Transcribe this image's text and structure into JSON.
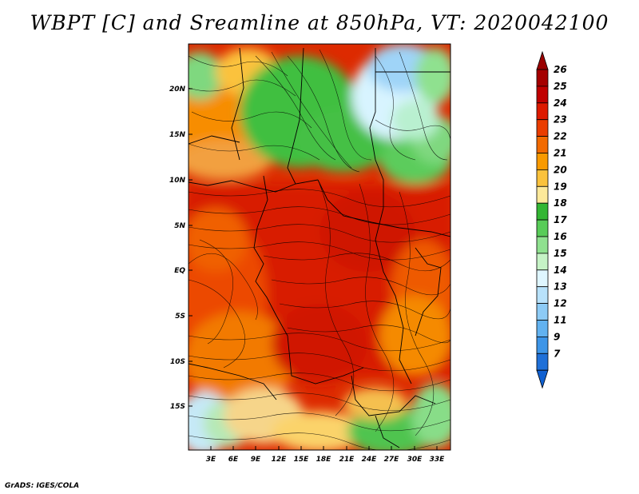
{
  "title": "WBPT [C] and Sreamline at 850hPa, VT: 2020042100",
  "credit": "GrADS: IGES/COLA",
  "map": {
    "lat_labels": [
      "20N",
      "15N",
      "10N",
      "5N",
      "EQ",
      "5S",
      "10S",
      "15S"
    ],
    "lon_labels": [
      "3E",
      "6E",
      "9E",
      "12E",
      "15E",
      "18E",
      "21E",
      "24E",
      "27E",
      "30E",
      "33E"
    ]
  },
  "colorbar": {
    "labels": [
      "26",
      "25",
      "24",
      "23",
      "22",
      "21",
      "20",
      "19",
      "18",
      "17",
      "16",
      "15",
      "14",
      "13",
      "12",
      "11",
      "9",
      "7"
    ],
    "colors": [
      "#a50000",
      "#c00000",
      "#dd1a00",
      "#ea3d00",
      "#f26a00",
      "#f99a00",
      "#fbc23c",
      "#fde99a",
      "#33b633",
      "#58cc58",
      "#8fe18f",
      "#c6f3c6",
      "#dff6ff",
      "#b8e2fb",
      "#8dcbf6",
      "#62b2f0",
      "#3d95e8",
      "#1f70d8"
    ],
    "top_color": "#9a0000",
    "bottom_color": "#1060d0"
  }
}
